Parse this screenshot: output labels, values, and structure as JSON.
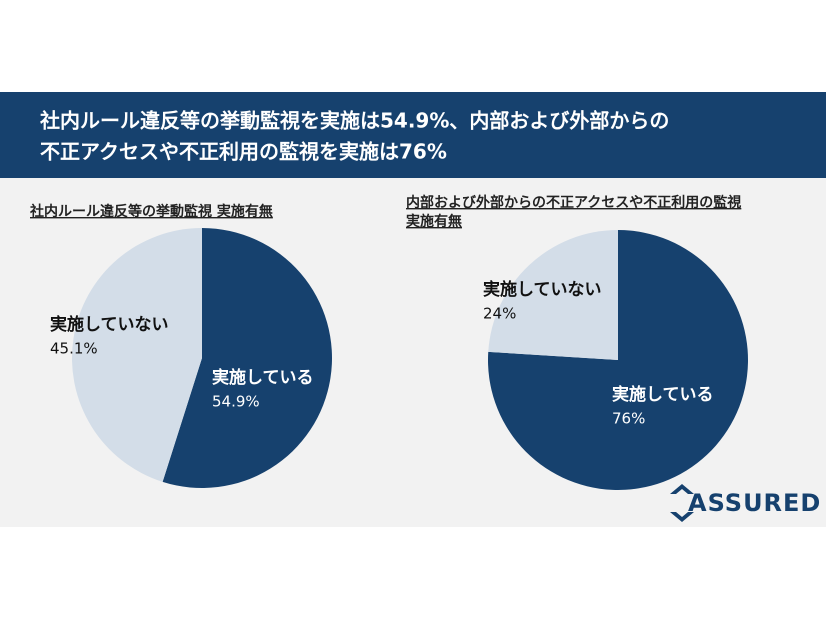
{
  "header": {
    "title": [
      "社内ルール違反等の挙動監視を実施は54.9%、内部および外部からの",
      "不正アクセスや不正利用の監視を実施は76%"
    ]
  },
  "chart_data": [
    {
      "type": "pie",
      "title": [
        "社内ルール違反等の挙動監視 実施有無"
      ],
      "categories": [
        "実施している",
        "実施していない"
      ],
      "values": [
        54.9,
        45.1
      ],
      "value_labels": [
        "54.9%",
        "45.1%"
      ],
      "colors": [
        "#16416e",
        "#d3dde8"
      ]
    },
    {
      "type": "pie",
      "title": [
        "内部および外部からの不正アクセスや不正利用の監視",
        "実施有無"
      ],
      "categories": [
        "実施している",
        "実施していない"
      ],
      "values": [
        76,
        24
      ],
      "value_labels": [
        "76%",
        "24%"
      ],
      "colors": [
        "#16416e",
        "#d3dde8"
      ]
    }
  ],
  "logo": "ASSURED"
}
